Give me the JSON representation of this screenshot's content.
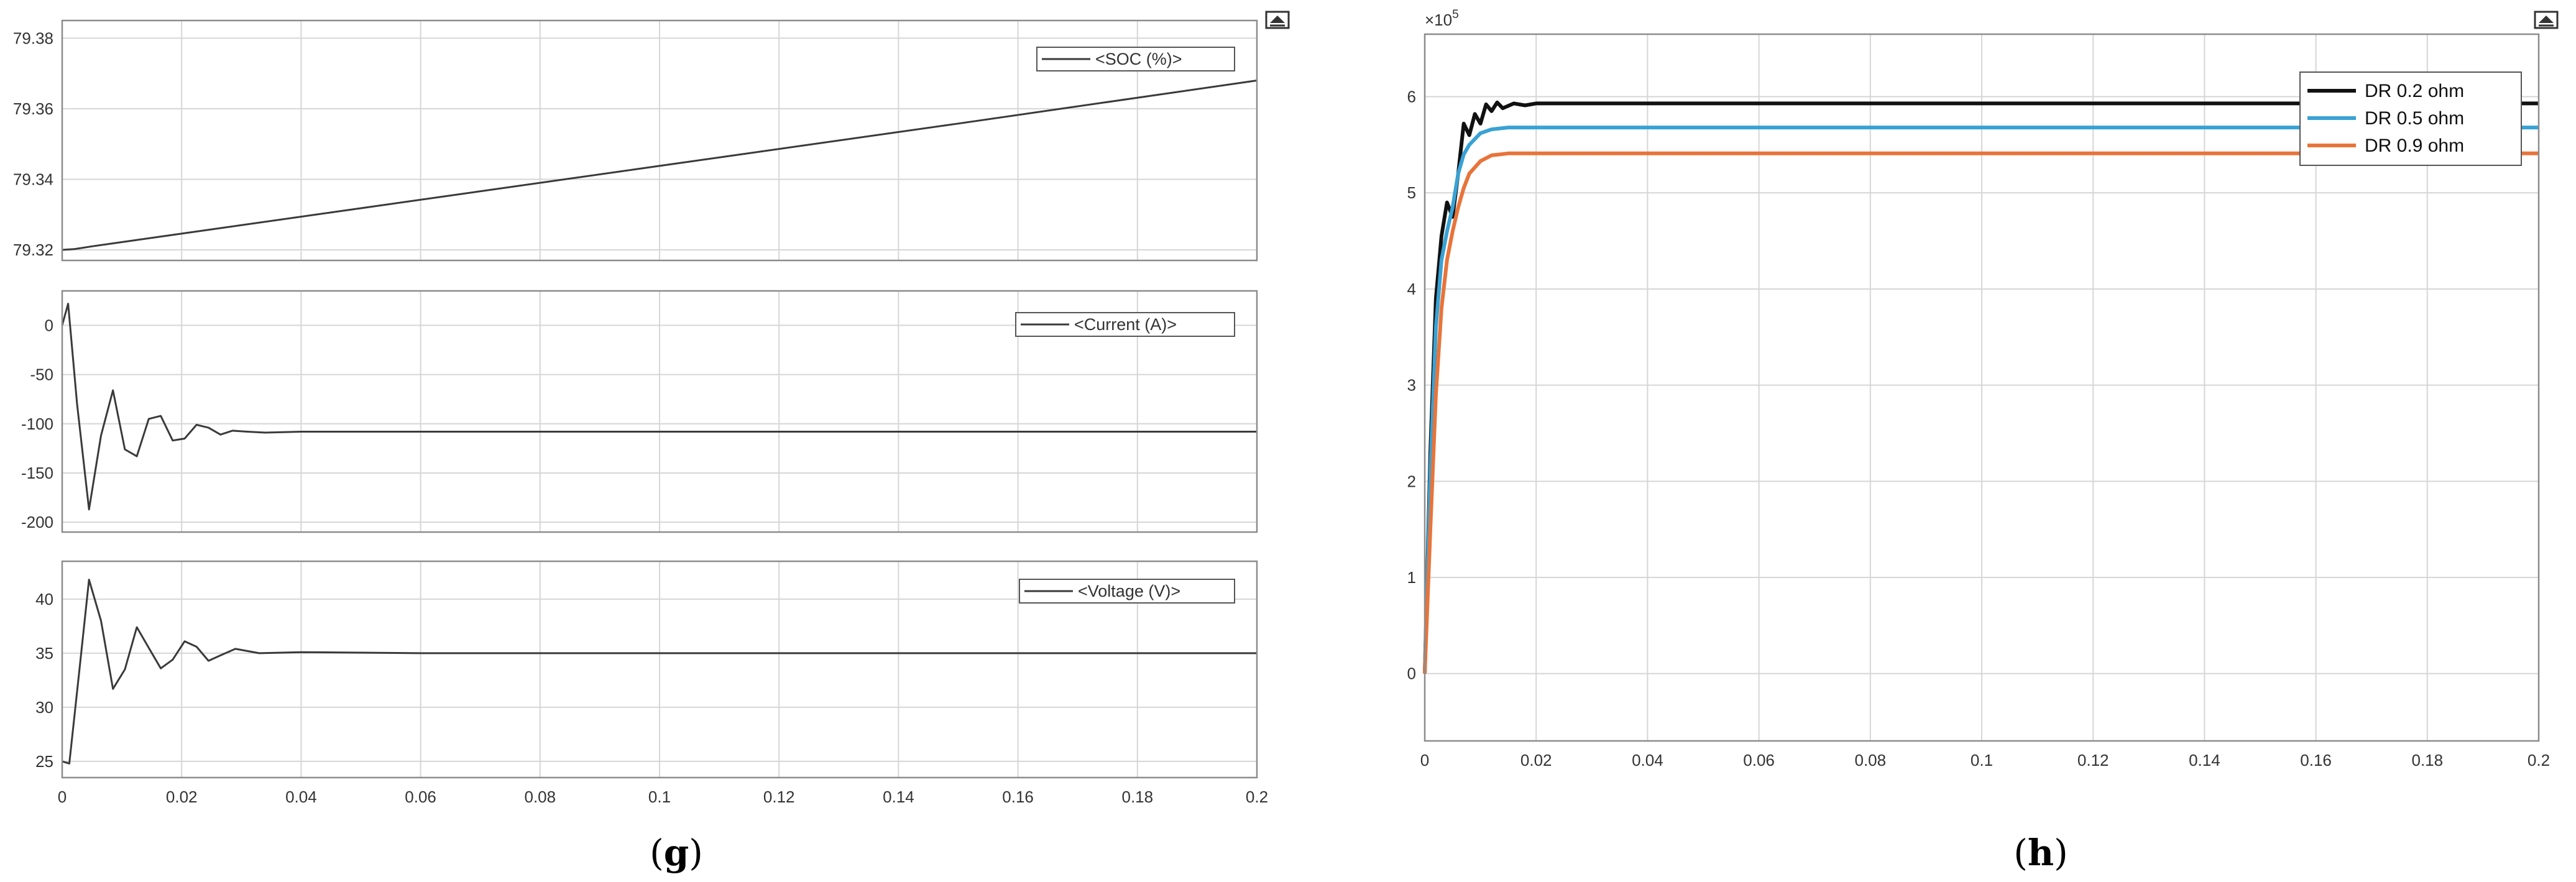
{
  "figure": {
    "label_g_open": "(",
    "label_g_letter": "g",
    "label_g_close": ")",
    "label_h_open": "(",
    "label_h_letter": "h",
    "label_h_close": ")"
  },
  "colors": {
    "grid": "#d6d6d6",
    "axes_border": "#8c8c8c",
    "trace_g": "#3a3a3a",
    "dr_02": "#111111",
    "dr_05": "#39a2d4",
    "dr_09": "#e8743a"
  },
  "chart_data": [
    {
      "id": "g-soc",
      "type": "line",
      "xlim": [
        0,
        0.2
      ],
      "ylim": [
        79.317,
        79.385
      ],
      "yticks": [
        "79.32",
        "79.34",
        "79.36",
        "79.38"
      ],
      "xticks": [],
      "grid": true,
      "legend": "top-right",
      "legend_label": "<SOC (%)>",
      "series": [
        {
          "name": "<SOC (%)>",
          "x": [
            0,
            0.002,
            0.005,
            0.01,
            0.05,
            0.1,
            0.15,
            0.2
          ],
          "y": [
            79.32,
            79.3202,
            79.321,
            79.3222,
            79.3318,
            79.3438,
            79.3558,
            79.368
          ]
        }
      ]
    },
    {
      "id": "g-current",
      "type": "line",
      "xlim": [
        0,
        0.2
      ],
      "ylim": [
        -210,
        35
      ],
      "yticks": [
        "0",
        "-50",
        "-100",
        "-150",
        "-200"
      ],
      "xticks": [],
      "grid": true,
      "legend": "top-right",
      "legend_label": "<Current (A)>",
      "series": [
        {
          "name": "<Current (A)>",
          "x": [
            0,
            0.001,
            0.0025,
            0.0045,
            0.0065,
            0.0085,
            0.0105,
            0.0125,
            0.0145,
            0.0165,
            0.0185,
            0.0205,
            0.0225,
            0.0245,
            0.0265,
            0.0285,
            0.031,
            0.034,
            0.04,
            0.06,
            0.1,
            0.2
          ],
          "y": [
            0,
            22,
            -80,
            -187,
            -112,
            -66,
            -126,
            -133,
            -95,
            -92,
            -117,
            -115,
            -101,
            -104,
            -111,
            -107,
            -108,
            -109,
            -108,
            -108,
            -108,
            -108
          ]
        }
      ]
    },
    {
      "id": "g-voltage",
      "type": "line",
      "xlim": [
        0,
        0.2
      ],
      "ylim": [
        23.5,
        43.5
      ],
      "yticks": [
        "25",
        "30",
        "35",
        "40"
      ],
      "xticks": [
        "0",
        "0.02",
        "0.04",
        "0.06",
        "0.08",
        "0.1",
        "0.12",
        "0.14",
        "0.16",
        "0.18",
        "0.2"
      ],
      "grid": true,
      "legend": "top-right",
      "legend_label": "<Voltage (V)>",
      "series": [
        {
          "name": "<Voltage (V)>",
          "x": [
            0,
            0.0012,
            0.0028,
            0.0045,
            0.0065,
            0.0085,
            0.0105,
            0.0125,
            0.0145,
            0.0165,
            0.0185,
            0.0205,
            0.0225,
            0.0245,
            0.0265,
            0.029,
            0.033,
            0.04,
            0.06,
            0.1,
            0.2
          ],
          "y": [
            25,
            24.8,
            33,
            41.8,
            38,
            31.7,
            33.5,
            37.4,
            35.5,
            33.6,
            34.4,
            36.1,
            35.6,
            34.3,
            34.8,
            35.4,
            35.0,
            35.1,
            35.0,
            35.0,
            35.0
          ]
        }
      ]
    },
    {
      "id": "h",
      "type": "line",
      "xlim": [
        0,
        0.2
      ],
      "ylim": [
        -0.7,
        6.65
      ],
      "exponent_label": "×10",
      "exponent_power": "5",
      "yticks": [
        "0",
        "1",
        "2",
        "3",
        "4",
        "5",
        "6"
      ],
      "xticks": [
        "0",
        "0.02",
        "0.04",
        "0.06",
        "0.08",
        "0.1",
        "0.12",
        "0.14",
        "0.16",
        "0.18",
        "0.2"
      ],
      "grid": true,
      "legend": "top-right",
      "series": [
        {
          "name": "DR  0.2 ohm",
          "x": [
            0,
            0.001,
            0.002,
            0.003,
            0.004,
            0.005,
            0.006,
            0.007,
            0.008,
            0.009,
            0.01,
            0.011,
            0.012,
            0.013,
            0.014,
            0.016,
            0.018,
            0.02,
            0.025,
            0.05,
            0.1,
            0.15,
            0.2
          ],
          "y": [
            0,
            2.3,
            3.9,
            4.55,
            4.9,
            4.75,
            5.2,
            5.72,
            5.6,
            5.82,
            5.72,
            5.92,
            5.85,
            5.94,
            5.88,
            5.93,
            5.91,
            5.93,
            5.93,
            5.93,
            5.93,
            5.93,
            5.93
          ]
        },
        {
          "name": "DR  0.5 ohm",
          "x": [
            0,
            0.001,
            0.002,
            0.003,
            0.004,
            0.005,
            0.006,
            0.007,
            0.008,
            0.01,
            0.012,
            0.015,
            0.02,
            0.05,
            0.1,
            0.15,
            0.2
          ],
          "y": [
            0,
            2.1,
            3.6,
            4.3,
            4.6,
            4.85,
            5.2,
            5.4,
            5.5,
            5.62,
            5.66,
            5.68,
            5.68,
            5.68,
            5.68,
            5.68,
            5.68
          ]
        },
        {
          "name": "DR  0.9 ohm",
          "x": [
            0,
            0.001,
            0.002,
            0.003,
            0.004,
            0.005,
            0.006,
            0.007,
            0.008,
            0.01,
            0.012,
            0.015,
            0.02,
            0.05,
            0.1,
            0.15,
            0.2
          ],
          "y": [
            0,
            1.5,
            2.9,
            3.8,
            4.3,
            4.6,
            4.85,
            5.05,
            5.2,
            5.33,
            5.39,
            5.41,
            5.41,
            5.41,
            5.41,
            5.41,
            5.41
          ]
        }
      ]
    }
  ]
}
